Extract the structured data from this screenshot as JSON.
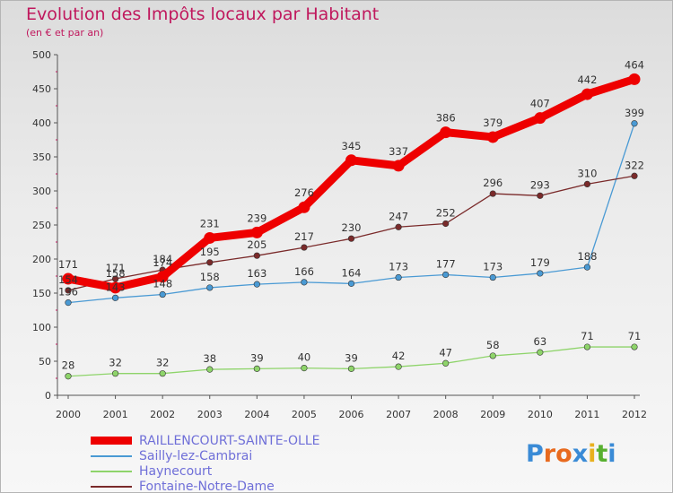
{
  "title": "Evolution des Impôts locaux par Habitant",
  "subtitle": "(en € et par an)",
  "logo": {
    "letters": [
      "P",
      "r",
      "o",
      "x",
      "i",
      "t",
      "i"
    ],
    "colors": [
      "#3a8bd6",
      "#e86a1e",
      "#e86a1e",
      "#3a8bd6",
      "#e8b01e",
      "#58b030",
      "#3a8bd6"
    ]
  },
  "chart_data": {
    "type": "line",
    "title": "Evolution des Impôts locaux par Habitant",
    "subtitle": "(en € et par an)",
    "xlabel": "",
    "ylabel": "",
    "x": [
      "2000",
      "2001",
      "2002",
      "2003",
      "2004",
      "2005",
      "2006",
      "2007",
      "2008",
      "2009",
      "2010",
      "2011",
      "2012"
    ],
    "ylim": [
      0,
      500
    ],
    "yticks": [
      0,
      50,
      100,
      150,
      200,
      250,
      300,
      350,
      400,
      450,
      500
    ],
    "grid": false,
    "legend_position": "bottom-left",
    "series": [
      {
        "name": "RAILLENCOURT-SAINTE-OLLE",
        "color": "#ee0000",
        "values": [
          171,
          158,
          174,
          231,
          239,
          276,
          345,
          337,
          386,
          379,
          407,
          442,
          464
        ],
        "labels": [
          "171",
          "158",
          "174",
          "231",
          "239",
          "276",
          "345",
          "337",
          "386",
          "379",
          "407",
          "442",
          "464"
        ]
      },
      {
        "name": "Sailly-lez-Cambrai",
        "color": "#4a9ad4",
        "values": [
          136,
          143,
          148,
          158,
          163,
          166,
          164,
          173,
          177,
          173,
          179,
          188,
          399
        ],
        "labels": [
          "136",
          "143",
          "148",
          "158",
          "163",
          "166",
          "164",
          "173",
          "177",
          "173",
          "179",
          "188",
          "399"
        ]
      },
      {
        "name": "Haynecourt",
        "color": "#8ed46a",
        "values": [
          28,
          32,
          32,
          38,
          39,
          40,
          39,
          42,
          47,
          58,
          63,
          71,
          71
        ],
        "labels": [
          "28",
          "32",
          "32",
          "38",
          "39",
          "40",
          "39",
          "42",
          "47",
          "58",
          "63",
          "71",
          "71"
        ]
      },
      {
        "name": "Fontaine-Notre-Dame",
        "color": "#7a2a2a",
        "values": [
          154,
          171,
          184,
          195,
          205,
          217,
          230,
          247,
          252,
          296,
          293,
          310,
          322
        ],
        "labels": [
          "154",
          "171",
          "184",
          "195",
          "205",
          "217",
          "230",
          "247",
          "252",
          "296",
          "293",
          "310",
          "322"
        ]
      }
    ]
  }
}
